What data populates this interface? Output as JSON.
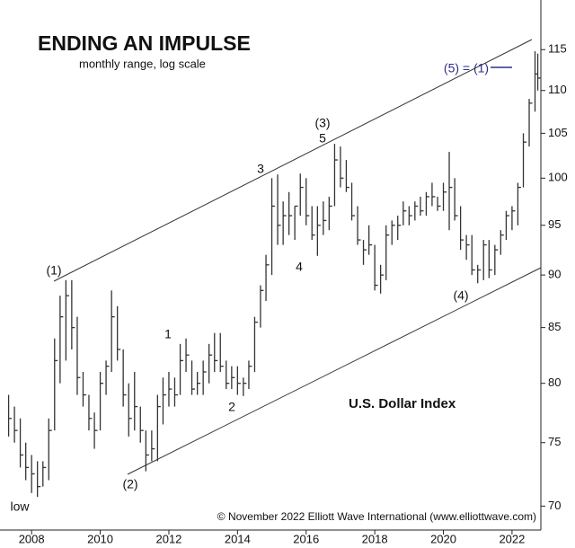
{
  "chart_data": {
    "type": "ohlc",
    "title": "ENDING AN IMPULSE",
    "subtitle": "monthly range, log scale",
    "series_label": "U.S. Dollar Index",
    "source": "© November 2022 Elliott Wave International (www.elliottwave.com)",
    "log_scale": true,
    "color": "#333333",
    "xlim": [
      2007.21,
      2022.84
    ],
    "xticks": [
      2008,
      2010,
      2012,
      2014,
      2016,
      2018,
      2020,
      2022
    ],
    "ylim": [
      68.2,
      120.2
    ],
    "yticks": [
      70,
      75,
      80,
      85,
      90,
      95,
      100,
      105,
      110,
      115
    ],
    "x": [
      2007.33,
      2007.5,
      2007.67,
      2007.83,
      2008.0,
      2008.17,
      2008.33,
      2008.5,
      2008.67,
      2008.83,
      2009.0,
      2009.17,
      2009.33,
      2009.5,
      2009.67,
      2009.83,
      2010.0,
      2010.17,
      2010.33,
      2010.5,
      2010.67,
      2010.83,
      2011.0,
      2011.17,
      2011.33,
      2011.5,
      2011.67,
      2011.83,
      2012.0,
      2012.17,
      2012.33,
      2012.5,
      2012.67,
      2012.83,
      2013.0,
      2013.17,
      2013.33,
      2013.5,
      2013.67,
      2013.83,
      2014.0,
      2014.17,
      2014.33,
      2014.5,
      2014.67,
      2014.83,
      2015.0,
      2015.17,
      2015.33,
      2015.5,
      2015.67,
      2015.83,
      2016.0,
      2016.17,
      2016.33,
      2016.5,
      2016.67,
      2016.83,
      2017.0,
      2017.17,
      2017.33,
      2017.5,
      2017.67,
      2017.83,
      2018.0,
      2018.17,
      2018.33,
      2018.5,
      2018.67,
      2018.83,
      2019.0,
      2019.17,
      2019.33,
      2019.5,
      2019.67,
      2019.83,
      2020.0,
      2020.17,
      2020.33,
      2020.5,
      2020.67,
      2020.83,
      2021.0,
      2021.17,
      2021.33,
      2021.5,
      2021.67,
      2021.83,
      2022.0,
      2022.17,
      2022.33,
      2022.5,
      2022.67,
      2022.75
    ],
    "high": [
      79,
      78,
      77,
      75,
      74,
      73.5,
      73.5,
      77,
      84,
      88,
      89.5,
      89.5,
      86,
      81,
      79,
      77.5,
      81,
      82,
      88.5,
      87,
      83,
      80,
      81,
      78,
      76,
      76,
      79,
      80.5,
      81,
      80.5,
      83.5,
      84,
      82,
      81,
      82,
      83.5,
      84.5,
      84.5,
      82,
      81.5,
      81.5,
      80.5,
      82,
      86,
      89,
      92,
      100,
      100.4,
      97.5,
      98.5,
      97,
      100.5,
      100,
      97,
      97,
      97.5,
      98,
      103.8,
      103.5,
      102,
      99.5,
      97,
      93.5,
      95,
      93,
      91,
      95,
      95.5,
      96,
      97.5,
      97,
      97.5,
      98,
      98.5,
      99.5,
      98,
      99.5,
      102.9,
      100,
      97,
      94,
      94,
      91,
      93.5,
      93.5,
      93,
      94.5,
      96.5,
      97,
      99.5,
      105,
      109,
      114.8,
      114.5
    ],
    "low": [
      75.5,
      75,
      73,
      72,
      71,
      70.7,
      71.5,
      72,
      76,
      80,
      82,
      83,
      79,
      78,
      76,
      74.5,
      76,
      79,
      81,
      82,
      78,
      75.5,
      76,
      75,
      72.7,
      73.5,
      73.5,
      76.5,
      78,
      78,
      79,
      81,
      79,
      79,
      79,
      80,
      81,
      81,
      79.5,
      79.5,
      79,
      78.9,
      79.5,
      81,
      85,
      87.5,
      90,
      93,
      93,
      94,
      93.5,
      96,
      95,
      93.5,
      91.9,
      94,
      94.5,
      97,
      99,
      98.5,
      95.5,
      93,
      91,
      92,
      88.5,
      88.2,
      89.5,
      93,
      93.5,
      95,
      95,
      95.5,
      96,
      96,
      97,
      96.5,
      96.5,
      94.5,
      95.5,
      92.5,
      91.5,
      90,
      89.2,
      89.5,
      89.7,
      90,
      92,
      93.5,
      94.5,
      95,
      99,
      103.5,
      107.5,
      110
    ],
    "close": [
      77,
      76,
      74,
      73,
      72.5,
      71.5,
      73,
      76,
      82,
      86,
      88,
      85,
      80.5,
      79,
      77,
      76,
      80,
      81.5,
      86,
      83,
      79,
      77,
      78,
      76,
      74,
      74.5,
      78,
      79,
      79.5,
      79,
      82,
      82.5,
      79.5,
      80,
      81,
      82.5,
      82,
      81.5,
      80,
      80.5,
      80,
      80,
      81.5,
      85.5,
      88.5,
      91,
      97,
      95,
      96,
      96,
      97,
      99,
      96,
      94,
      95,
      95.5,
      97,
      102,
      100,
      99,
      96,
      93.5,
      92.5,
      93,
      89,
      90,
      94,
      95,
      95,
      96.5,
      96,
      97,
      96.5,
      98,
      98,
      97,
      98.5,
      99,
      96,
      93.5,
      93,
      90.5,
      90.5,
      93,
      90.5,
      92.5,
      94,
      96,
      96.5,
      99,
      104,
      108.5,
      112,
      111.5
    ],
    "annotations": [
      "low",
      "(1)",
      "(2)",
      "1",
      "2",
      "3",
      "4",
      "(3)",
      "5",
      "(4)",
      "(5) = (1)"
    ]
  }
}
